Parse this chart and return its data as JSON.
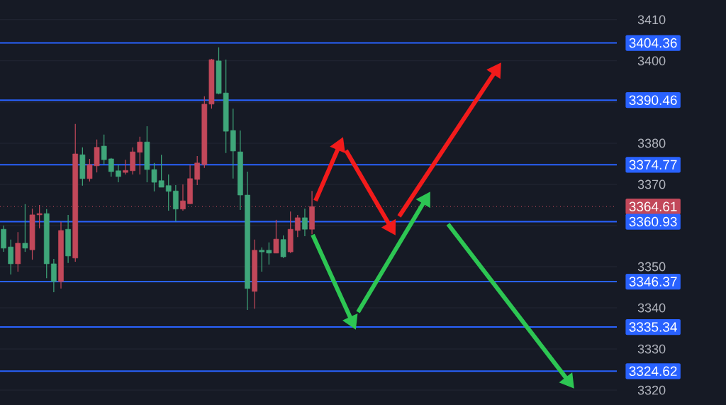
{
  "chart_data": {
    "type": "candlestick",
    "categories": [
      null,
      null,
      null,
      null,
      null,
      null,
      null,
      null,
      null,
      null,
      null,
      null,
      null,
      null,
      null,
      null,
      null,
      null,
      null,
      null,
      null,
      null,
      null,
      null,
      null,
      null,
      null,
      null,
      null,
      null,
      null,
      null,
      null,
      null,
      null,
      null,
      null,
      null,
      null,
      null,
      null,
      null,
      null,
      null,
      null,
      null,
      null,
      null,
      null,
      null,
      null,
      null,
      null,
      null,
      null,
      null,
      null,
      null,
      null,
      null,
      null,
      null,
      null,
      null,
      null,
      null,
      null,
      null,
      null,
      null,
      null,
      null,
      null,
      null,
      null,
      null,
      null,
      null,
      null,
      null,
      null,
      null,
      null,
      null,
      null,
      null
    ],
    "ohlc": [
      [
        3359.1,
        3360.0,
        3353.6,
        3354.5
      ],
      [
        3354.8,
        3356.6,
        3348.1,
        3350.7
      ],
      [
        3350.7,
        3358.4,
        3348.8,
        3355.7
      ],
      [
        3355.7,
        3365.2,
        3353.6,
        3354.5
      ],
      [
        3354.1,
        3364.1,
        3351.7,
        3362.6
      ],
      [
        3362.6,
        3365.0,
        3359.3,
        3362.9
      ],
      [
        3362.9,
        3364.0,
        3347.2,
        3350.7
      ],
      [
        3350.7,
        3351.9,
        3343.8,
        3346.4
      ],
      [
        3346.4,
        3360.9,
        3344.7,
        3358.8
      ],
      [
        3359.1,
        3362.6,
        3350.9,
        3352.6
      ],
      [
        3352.1,
        3384.7,
        3351.2,
        3377.4
      ],
      [
        3377.2,
        3379.0,
        3369.7,
        3371.4
      ],
      [
        3371.4,
        3376.2,
        3370.7,
        3374.8
      ],
      [
        3374.5,
        3380.9,
        3372.9,
        3379.0
      ],
      [
        3379.3,
        3382.1,
        3374.8,
        3376.0
      ],
      [
        3376.2,
        3376.4,
        3371.9,
        3373.1
      ],
      [
        3373.3,
        3374.8,
        3370.5,
        3371.9
      ],
      [
        3372.9,
        3376.0,
        3372.4,
        3373.4
      ],
      [
        3373.3,
        3379.0,
        3372.4,
        3377.9
      ],
      [
        3377.8,
        3381.6,
        3372.4,
        3380.3
      ],
      [
        3380.3,
        3384.1,
        3370.5,
        3373.6
      ],
      [
        3373.6,
        3375.2,
        3368.3,
        3370.5
      ],
      [
        3370.9,
        3377.2,
        3369.3,
        3369.3
      ],
      [
        3369.7,
        3372.4,
        3363.6,
        3368.3
      ],
      [
        3368.4,
        3369.8,
        3361.0,
        3364.0
      ],
      [
        3364.0,
        3370.0,
        3363.6,
        3366.0
      ],
      [
        3365.3,
        3374.7,
        3365.2,
        3371.4
      ],
      [
        3371.2,
        3376.9,
        3369.8,
        3375.2
      ],
      [
        3374.8,
        3391.4,
        3374.0,
        3389.5
      ],
      [
        3389.5,
        3400.5,
        3388.4,
        3400.3
      ],
      [
        3400.0,
        3403.3,
        3391.9,
        3392.1
      ],
      [
        3392.2,
        3400.3,
        3377.6,
        3382.9
      ],
      [
        3383.1,
        3388.4,
        3371.4,
        3378.1
      ],
      [
        3377.9,
        3383.1,
        3363.8,
        3367.4
      ],
      [
        3367.4,
        3373.1,
        3339.5,
        3344.7
      ],
      [
        3344.0,
        3356.6,
        3339.8,
        3354.0
      ],
      [
        3354.0,
        3354.7,
        3348.8,
        3353.6
      ],
      [
        3354.0,
        3355.9,
        3350.5,
        3353.3
      ],
      [
        3353.3,
        3361.4,
        3353.3,
        3356.7
      ],
      [
        3356.6,
        3357.6,
        3352.1,
        3352.4
      ],
      [
        3353.6,
        3363.4,
        3353.3,
        3359.1
      ],
      [
        3358.8,
        3362.6,
        3357.2,
        3361.9
      ],
      [
        3361.9,
        3364.1,
        3357.4,
        3359.1
      ],
      [
        3359.1,
        3368.4,
        3357.9,
        3364.61
      ],
      null,
      null,
      null,
      null,
      null,
      null,
      null,
      null,
      null,
      null,
      null,
      null,
      null,
      null,
      null,
      null,
      null,
      null,
      null,
      null,
      null,
      null,
      null,
      null,
      null,
      null,
      null,
      null,
      null,
      null,
      null,
      null,
      null,
      null,
      null,
      null,
      null,
      null,
      null,
      null,
      null,
      null
    ],
    "colors": [
      "#3fa67a",
      "#3fa67a",
      "#c2485a",
      "#3fa67a",
      "#c2485a",
      "#c2485a",
      "#3fa67a",
      "#3fa67a",
      "#c2485a",
      "#3fa67a",
      "#c2485a",
      "#3fa67a",
      "#c2485a",
      "#c2485a",
      "#3fa67a",
      "#3fa67a",
      "#3fa67a",
      "#c2485a",
      "#c2485a",
      "#c2485a",
      "#3fa67a",
      "#3fa67a",
      "#3fa67a",
      "#3fa67a",
      "#3fa67a",
      "#c2485a",
      "#c2485a",
      "#c2485a",
      "#c2485a",
      "#c2485a",
      "#3fa67a",
      "#3fa67a",
      "#3fa67a",
      "#3fa67a",
      "#3fa67a",
      "#c2485a",
      "#3fa67a",
      "#3fa67a",
      "#c2485a",
      "#3fa67a",
      "#c2485a",
      "#c2485a",
      "#3fa67a",
      "#c2485a",
      null,
      null,
      null,
      null,
      null,
      null,
      null,
      null,
      null,
      null,
      null,
      null,
      null,
      null,
      null,
      null,
      null,
      null,
      null,
      null,
      null,
      null,
      null,
      null,
      null,
      null,
      null,
      null,
      null,
      null,
      null,
      null,
      null,
      null,
      null,
      null,
      null,
      null,
      null,
      null,
      null,
      null
    ],
    "ylim": [
      3316.4,
      3414.8
    ],
    "yticks": [
      3320,
      3330,
      3340,
      3350,
      {
        "value": 3360,
        "label": null
      },
      3370,
      3380,
      {
        "value": 3390,
        "label": null
      },
      3400,
      3410
    ],
    "tick_labels": "y",
    "grid": "y",
    "ref_lines": [
      {
        "axis": "y",
        "value": 3404.36,
        "label": "3404.36",
        "color": "#2962ff",
        "line_style": "solid"
      },
      {
        "axis": "y",
        "value": 3390.46,
        "label": "3390.46",
        "color": "#2962ff",
        "line_style": "solid"
      },
      {
        "axis": "y",
        "value": 3374.77,
        "label": "3374.77",
        "color": "#2962ff",
        "line_style": "solid"
      },
      {
        "axis": "y",
        "value": 3364.61,
        "label": "3364.61",
        "color": "#c2485a",
        "line_style": "dotted"
      },
      {
        "axis": "y",
        "value": 3360.93,
        "label": "3360.93",
        "color": "#2962ff",
        "line_style": "solid"
      },
      {
        "axis": "y",
        "value": 3346.37,
        "label": "3346.37",
        "color": "#2962ff",
        "line_style": "solid"
      },
      {
        "axis": "y",
        "value": 3335.34,
        "label": "3335.34",
        "color": "#2962ff",
        "line_style": "solid"
      },
      {
        "axis": "y",
        "value": 3324.62,
        "label": "3324.62",
        "color": "#2962ff",
        "line_style": "solid"
      }
    ]
  }
}
